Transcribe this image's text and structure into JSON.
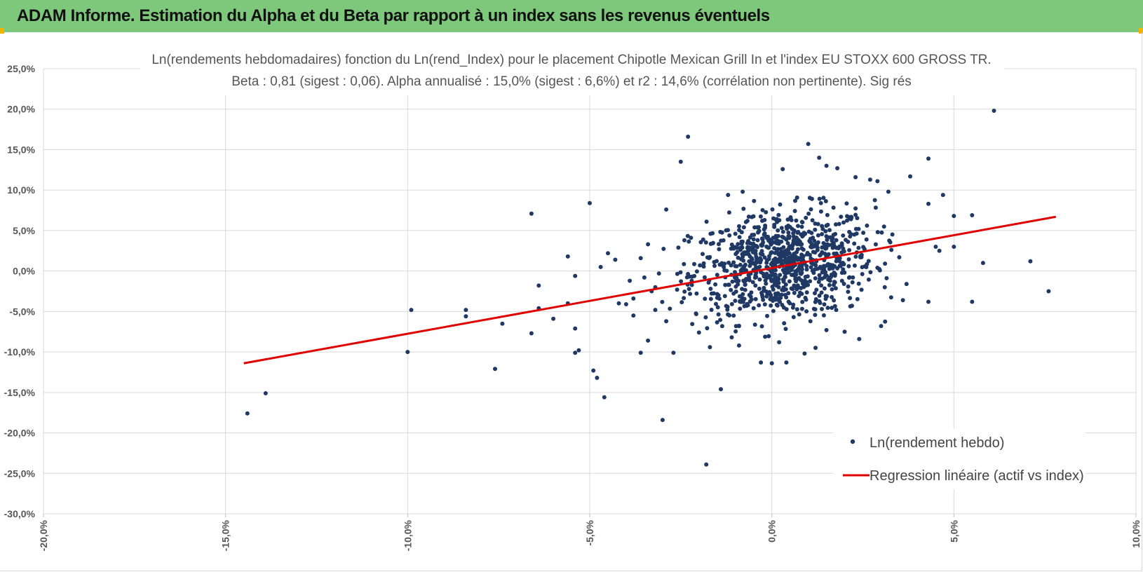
{
  "header": {
    "title": "ADAM Informe. Estimation du Alpha et du Beta par rapport à un index sans les revenus éventuels"
  },
  "colors": {
    "header_bg": "#7ec87c",
    "point": "#1f3864",
    "regression": "#e00000",
    "grid": "#d9d9d9",
    "corner": "#f0b400"
  },
  "chart_data": {
    "type": "scatter",
    "title": "Ln(rendements hebdomadaires) fonction du Ln(rend_Index) pour le placement Chipotle Mexican Grill In et l'index EU STOXX 600 GROSS TR.",
    "subtitle": "Beta : 0,81 (sigest : 0,06). Alpha annualisé : 15,0% (sigest : 6,6%) et r2 : 14,6% (corrélation non pertinente). Sig rés",
    "xlim": [
      -20,
      10
    ],
    "ylim": [
      -30,
      25
    ],
    "x_ticks": [
      -20,
      -15,
      -10,
      -5,
      0,
      5,
      10
    ],
    "y_ticks": [
      25,
      20,
      15,
      10,
      5,
      0,
      -5,
      -10,
      -15,
      -20,
      -25,
      -30
    ],
    "x_tick_labels": [
      "-20,0%",
      "-15,0%",
      "-10,0%",
      "-5,0%",
      "0,0%",
      "5,0%",
      "10,0%"
    ],
    "y_tick_labels": [
      "25,0%",
      "20,0%",
      "15,0%",
      "10,0%",
      "5,0%",
      "0,0%",
      "-5,0%",
      "-10,0%",
      "-15,0%",
      "-20,0%",
      "-25,0%",
      "-30,0%"
    ],
    "grid": true,
    "legend_position": "bottom-right",
    "series": [
      {
        "name": "Ln(rendement hebdo)",
        "kind": "scatter",
        "points": [
          [
            -14.4,
            -17.6
          ],
          [
            -13.9,
            -15.1
          ],
          [
            -9.9,
            -4.8
          ],
          [
            -10.0,
            -10.0
          ],
          [
            -8.4,
            -4.8
          ],
          [
            -8.4,
            -5.6
          ],
          [
            -7.6,
            -12.1
          ],
          [
            -7.4,
            -6.5
          ],
          [
            -6.6,
            7.1
          ],
          [
            -6.4,
            -1.8
          ],
          [
            -6.4,
            -4.6
          ],
          [
            -6.6,
            -7.7
          ],
          [
            -6.0,
            -5.9
          ],
          [
            -5.6,
            1.8
          ],
          [
            -5.6,
            -4.0
          ],
          [
            -5.4,
            -0.6
          ],
          [
            -5.4,
            -7.1
          ],
          [
            -5.4,
            -10.1
          ],
          [
            -5.3,
            -9.8
          ],
          [
            -5.0,
            8.4
          ],
          [
            -4.9,
            -12.3
          ],
          [
            -4.8,
            -13.2
          ],
          [
            -4.7,
            0.5
          ],
          [
            -4.6,
            -15.6
          ],
          [
            -4.5,
            2.2
          ],
          [
            -4.3,
            1.4
          ],
          [
            -4.2,
            -4.0
          ],
          [
            -4.0,
            -4.1
          ],
          [
            -3.9,
            -1.2
          ],
          [
            -3.8,
            -3.4
          ],
          [
            -3.8,
            -5.5
          ],
          [
            -3.6,
            1.6
          ],
          [
            -3.6,
            -10.1
          ],
          [
            -3.5,
            -0.8
          ],
          [
            -3.4,
            3.3
          ],
          [
            -3.3,
            -2.5
          ],
          [
            -3.2,
            -2.0
          ],
          [
            -3.2,
            -4.8
          ],
          [
            -3.1,
            -0.3
          ],
          [
            -3.0,
            -18.4
          ],
          [
            -2.9,
            7.6
          ],
          [
            -2.7,
            -10.1
          ],
          [
            -2.5,
            13.5
          ],
          [
            -2.3,
            16.6
          ],
          [
            -2.4,
            3.8
          ],
          [
            -1.8,
            -23.9
          ],
          [
            -1.4,
            -14.6
          ],
          [
            -1.2,
            9.4
          ],
          [
            -0.8,
            9.8
          ],
          [
            0.3,
            12.6
          ],
          [
            1.0,
            15.7
          ],
          [
            1.3,
            14.0
          ],
          [
            1.5,
            13.0
          ],
          [
            1.8,
            12.7
          ],
          [
            2.3,
            11.6
          ],
          [
            2.7,
            11.3
          ],
          [
            2.9,
            11.1
          ],
          [
            3.2,
            9.8
          ],
          [
            3.8,
            11.7
          ],
          [
            4.3,
            13.9
          ],
          [
            4.3,
            8.3
          ],
          [
            4.5,
            3.0
          ],
          [
            4.6,
            2.5
          ],
          [
            4.7,
            9.4
          ],
          [
            5.0,
            6.8
          ],
          [
            5.0,
            3.0
          ],
          [
            5.5,
            6.9
          ],
          [
            5.5,
            -3.8
          ],
          [
            5.8,
            1.0
          ],
          [
            6.1,
            19.8
          ],
          [
            7.1,
            1.2
          ],
          [
            7.6,
            -2.5
          ],
          [
            4.3,
            -3.8
          ],
          [
            3.6,
            -3.6
          ],
          [
            3.0,
            -6.8
          ],
          [
            2.4,
            -8.4
          ],
          [
            1.5,
            -7.3
          ],
          [
            0.9,
            -10.2
          ],
          [
            0.4,
            -11.3
          ],
          [
            0.0,
            -11.4
          ],
          [
            -0.3,
            -11.3
          ],
          [
            -0.9,
            -9.2
          ],
          [
            -1.7,
            -9.4
          ],
          [
            -2.0,
            -7.6
          ],
          [
            -2.9,
            -6.2
          ],
          [
            -3.4,
            -8.6
          ],
          [
            -1.1,
            -8.2
          ],
          [
            0.2,
            -8.8
          ],
          [
            1.2,
            -9.5
          ],
          [
            2.0,
            -7.5
          ],
          [
            3.5,
            1.7
          ],
          [
            3.7,
            -1.6
          ],
          [
            -2.2,
            -1.2
          ],
          [
            -1.9,
            2.1
          ],
          [
            -1.5,
            -3.3
          ],
          [
            -1.0,
            4.6
          ],
          [
            -0.5,
            -4.6
          ],
          [
            -0.2,
            6.3
          ],
          [
            0.6,
            -5.7
          ],
          [
            1.4,
            5.2
          ],
          [
            2.2,
            -4.3
          ],
          [
            2.6,
            3.9
          ],
          [
            -0.6,
            1.8
          ],
          [
            0.8,
            0.5
          ],
          [
            1.6,
            -1.2
          ],
          [
            -1.3,
            0.9
          ],
          [
            0.1,
            -2.8
          ],
          [
            2.9,
            0.4
          ],
          [
            -2.6,
            -2.3
          ],
          [
            3.1,
            -2.0
          ],
          [
            -0.9,
            -6.8
          ],
          [
            1.9,
            6.7
          ]
        ],
        "cloud": {
          "center": [
            0.3,
            0.8
          ],
          "sd": [
            1.25,
            3.3
          ],
          "count": 900
        }
      },
      {
        "name": "Regression linéaire (actif vs index)",
        "kind": "line",
        "points": [
          [
            -14.5,
            -11.4
          ],
          [
            7.8,
            6.7
          ]
        ]
      }
    ]
  }
}
